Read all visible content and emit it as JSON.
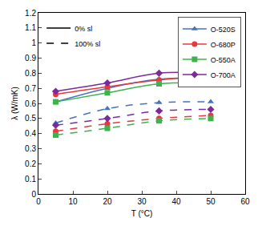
{
  "chart_data": {
    "type": "line",
    "x_label": "T (°C)",
    "y_label": "λ (W/mK)",
    "x": [
      5,
      20,
      35,
      50
    ],
    "xlim": [
      0,
      60
    ],
    "xticks": [
      0,
      10,
      20,
      30,
      40,
      50,
      60
    ],
    "ylim": [
      0,
      1.2
    ],
    "yticks": [
      0,
      0.1,
      0.2,
      0.3,
      0.4,
      0.5,
      0.6,
      0.7,
      0.8,
      0.9,
      1,
      1.1,
      1.2
    ],
    "grid": false,
    "legend": "top-right",
    "conditions": [
      {
        "name": "0% sl",
        "line_style": "solid"
      },
      {
        "name": "100% sl",
        "line_style": "dash"
      }
    ],
    "series": [
      {
        "name": "O-520S",
        "color": "#4472c4",
        "marker": "triangle-up",
        "values": [
          [
            0.61,
            0.7,
            0.76,
            0.77
          ],
          [
            0.47,
            0.565,
            0.605,
            0.61
          ]
        ]
      },
      {
        "name": "O-680P",
        "color": "#e8383d",
        "marker": "circle",
        "values": [
          [
            0.66,
            0.71,
            0.755,
            0.78
          ],
          [
            0.415,
            0.465,
            0.5,
            0.52
          ]
        ]
      },
      {
        "name": "O-550A",
        "color": "#3cb44b",
        "marker": "square",
        "values": [
          [
            0.61,
            0.67,
            0.73,
            0.735
          ],
          [
            0.39,
            0.435,
            0.485,
            0.5
          ]
        ]
      },
      {
        "name": "O-700A",
        "color": "#7b2a9c",
        "marker": "diamond",
        "values": [
          [
            0.68,
            0.735,
            0.8,
            0.8
          ],
          [
            0.455,
            0.5,
            0.55,
            0.56
          ]
        ]
      }
    ]
  }
}
